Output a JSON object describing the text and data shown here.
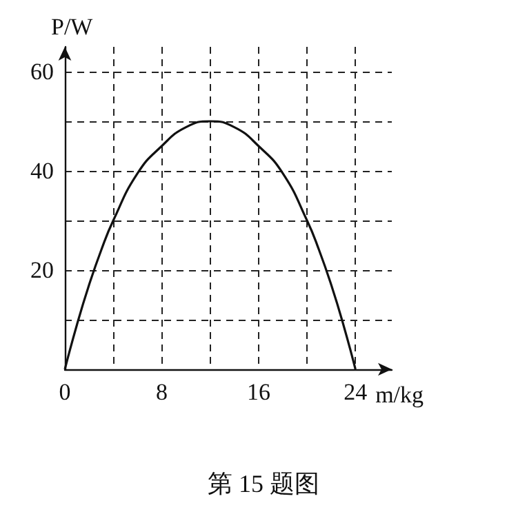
{
  "chart_data": {
    "type": "line",
    "xlabel": "m/kg",
    "ylabel": "P/W",
    "annotations": [
      "第 15 题图"
    ],
    "x": [
      0,
      1,
      2,
      3,
      4,
      6,
      8,
      10,
      12,
      14,
      16,
      18,
      20,
      21,
      22,
      23,
      24
    ],
    "series": [
      {
        "color": "#111111",
        "values": [
          0,
          9,
          17,
          24,
          30,
          39.5,
          45,
          48.8,
          50,
          48.8,
          45,
          39.5,
          30,
          24,
          17,
          9,
          0
        ]
      }
    ],
    "xlim": [
      0,
      27
    ],
    "ylim": [
      0,
      65
    ],
    "xticks": [
      0,
      {
        "value": 4,
        "label": null
      },
      8,
      {
        "value": 12,
        "label": null
      },
      16,
      {
        "value": 20,
        "label": null
      },
      24
    ],
    "yticks": [
      {
        "value": 10,
        "label": null
      },
      20,
      {
        "value": 30,
        "label": null
      },
      40,
      {
        "value": 50,
        "label": null
      },
      60
    ],
    "grid": true,
    "marker": "none",
    "line_style": "solid"
  }
}
